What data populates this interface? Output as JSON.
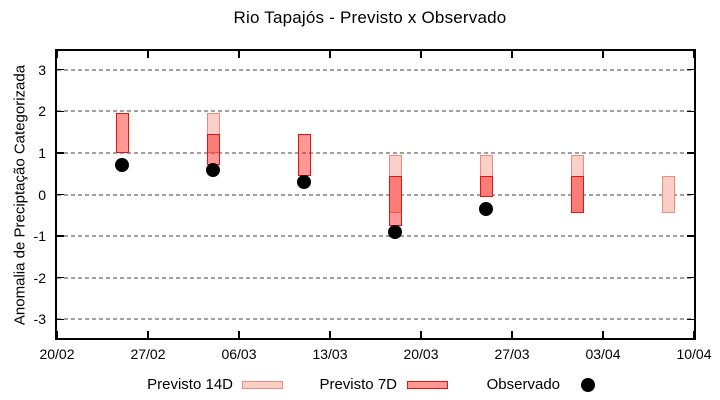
{
  "header": {
    "title": "Rio Tapajós - Previsto x Observado"
  },
  "colors": {
    "previsto_14d_fill": "#f9cfc8",
    "previsto_14d_border": "#ef8b7c",
    "previsto_7d_fill_rgba": "rgba(255,20,16,0.44)",
    "previsto_7d_border": "#e5150e",
    "previsto_7d_legend_fill": "#ff9795",
    "observado": "#000000",
    "grid": "#a0a0a0",
    "axis": "#000000"
  },
  "legend": {
    "items": [
      {
        "label": "Previsto 14D",
        "marker": "light-pink-box"
      },
      {
        "label": "Previsto 7D",
        "marker": "red-box"
      },
      {
        "label": "Observado",
        "marker": "black-dot"
      }
    ]
  },
  "chart_data": {
    "type": "bar",
    "subtype": "range-bar-candlestick with observation points",
    "title": "Rio Tapajós - Previsto x Observado",
    "xlabel": "",
    "ylabel": "Anomalia de Preciptação Categorizada",
    "ylim": [
      -3.45,
      3.45
    ],
    "y_ticks": [
      3,
      2,
      1,
      0,
      -1,
      -2,
      -3
    ],
    "x_range_days": [
      0,
      49
    ],
    "x_ticks": [
      {
        "label": "20/02",
        "day": 0
      },
      {
        "label": "27/02",
        "day": 7
      },
      {
        "label": "06/03",
        "day": 14
      },
      {
        "label": "13/03",
        "day": 21
      },
      {
        "label": "20/03",
        "day": 28
      },
      {
        "label": "27/03",
        "day": 35
      },
      {
        "label": "03/04",
        "day": 42
      },
      {
        "label": "10/04",
        "day": 49
      }
    ],
    "grid": "horizontal-dotted",
    "legend_position": "bottom",
    "series": [
      {
        "name": "Previsto 14D",
        "type": "range_bar",
        "points": [
          {
            "date": "04/03",
            "day": 12,
            "low": 1.0,
            "high": 1.95
          },
          {
            "date": "18/03",
            "day": 26,
            "low": -0.45,
            "high": 0.95
          },
          {
            "date": "25/03",
            "day": 33,
            "low": -0.05,
            "high": 0.95
          },
          {
            "date": "01/04",
            "day": 40,
            "low": -0.45,
            "high": 0.95
          },
          {
            "date": "08/04",
            "day": 47,
            "low": -0.45,
            "high": 0.45
          }
        ]
      },
      {
        "name": "Previsto 7D",
        "type": "range_bar",
        "points": [
          {
            "date": "25/02",
            "day": 5,
            "low": 1.0,
            "high": 1.95
          },
          {
            "date": "04/03",
            "day": 12,
            "low": 0.7,
            "high": 1.45
          },
          {
            "date": "11/03",
            "day": 19,
            "low": 0.45,
            "high": 1.45
          },
          {
            "date": "18/03",
            "day": 26,
            "low": -0.75,
            "high": 0.45
          },
          {
            "date": "25/03",
            "day": 33,
            "low": -0.05,
            "high": 0.45
          },
          {
            "date": "01/04",
            "day": 40,
            "low": -0.45,
            "high": 0.45
          }
        ]
      },
      {
        "name": "Observado",
        "type": "point",
        "points": [
          {
            "date": "25/02",
            "day": 5,
            "value": 0.7
          },
          {
            "date": "04/03",
            "day": 12,
            "value": 0.6
          },
          {
            "date": "11/03",
            "day": 19,
            "value": 0.3
          },
          {
            "date": "18/03",
            "day": 26,
            "value": -0.9
          },
          {
            "date": "25/03",
            "day": 33,
            "value": -0.35
          }
        ]
      }
    ]
  }
}
